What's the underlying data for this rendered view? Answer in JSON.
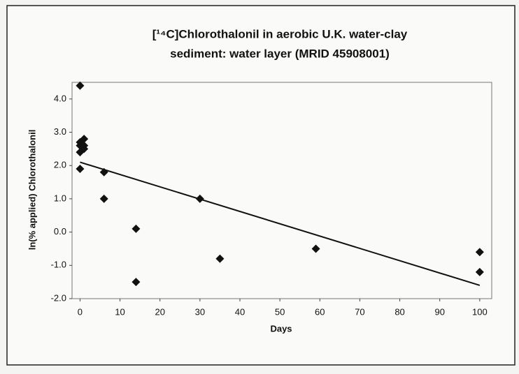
{
  "chart_data": {
    "type": "scatter",
    "title": [
      "[¹⁴C]Chlorothalonil in aerobic U.K. water-clay",
      "sediment: water layer (MRID 45908001)"
    ],
    "x_label": "Days",
    "y_label": "ln(% applied) Chlorothalonil",
    "series": [
      {
        "color": "#111111",
        "x": [
          0,
          0,
          0,
          0,
          0,
          1,
          1,
          1,
          6,
          6,
          14,
          14,
          30,
          35,
          59,
          100,
          100
        ],
        "values": [
          4.4,
          2.7,
          2.6,
          2.4,
          1.9,
          2.8,
          2.5,
          2.6,
          1.8,
          1.0,
          0.1,
          -1.5,
          1.0,
          -0.8,
          -0.5,
          -0.6,
          -1.2
        ]
      }
    ],
    "trendline": {
      "color": "#111111",
      "x": [
        0,
        100
      ],
      "values": [
        2.1,
        -1.6
      ]
    },
    "xlim": [
      -2,
      103
    ],
    "ylim": [
      -2,
      4.5
    ],
    "xticks": [
      0,
      10,
      20,
      30,
      40,
      50,
      60,
      70,
      80,
      90,
      100
    ],
    "yticks": [
      {
        "value": -2,
        "label": "-2.0"
      },
      {
        "value": -1,
        "label": "-1.0"
      },
      {
        "value": 0,
        "label": "0.0"
      },
      {
        "value": 1,
        "label": "1.0"
      },
      {
        "value": 2,
        "label": "2.0"
      },
      {
        "value": 3,
        "label": "3.0"
      },
      {
        "value": 4,
        "label": "4.0"
      }
    ],
    "grid": false
  }
}
